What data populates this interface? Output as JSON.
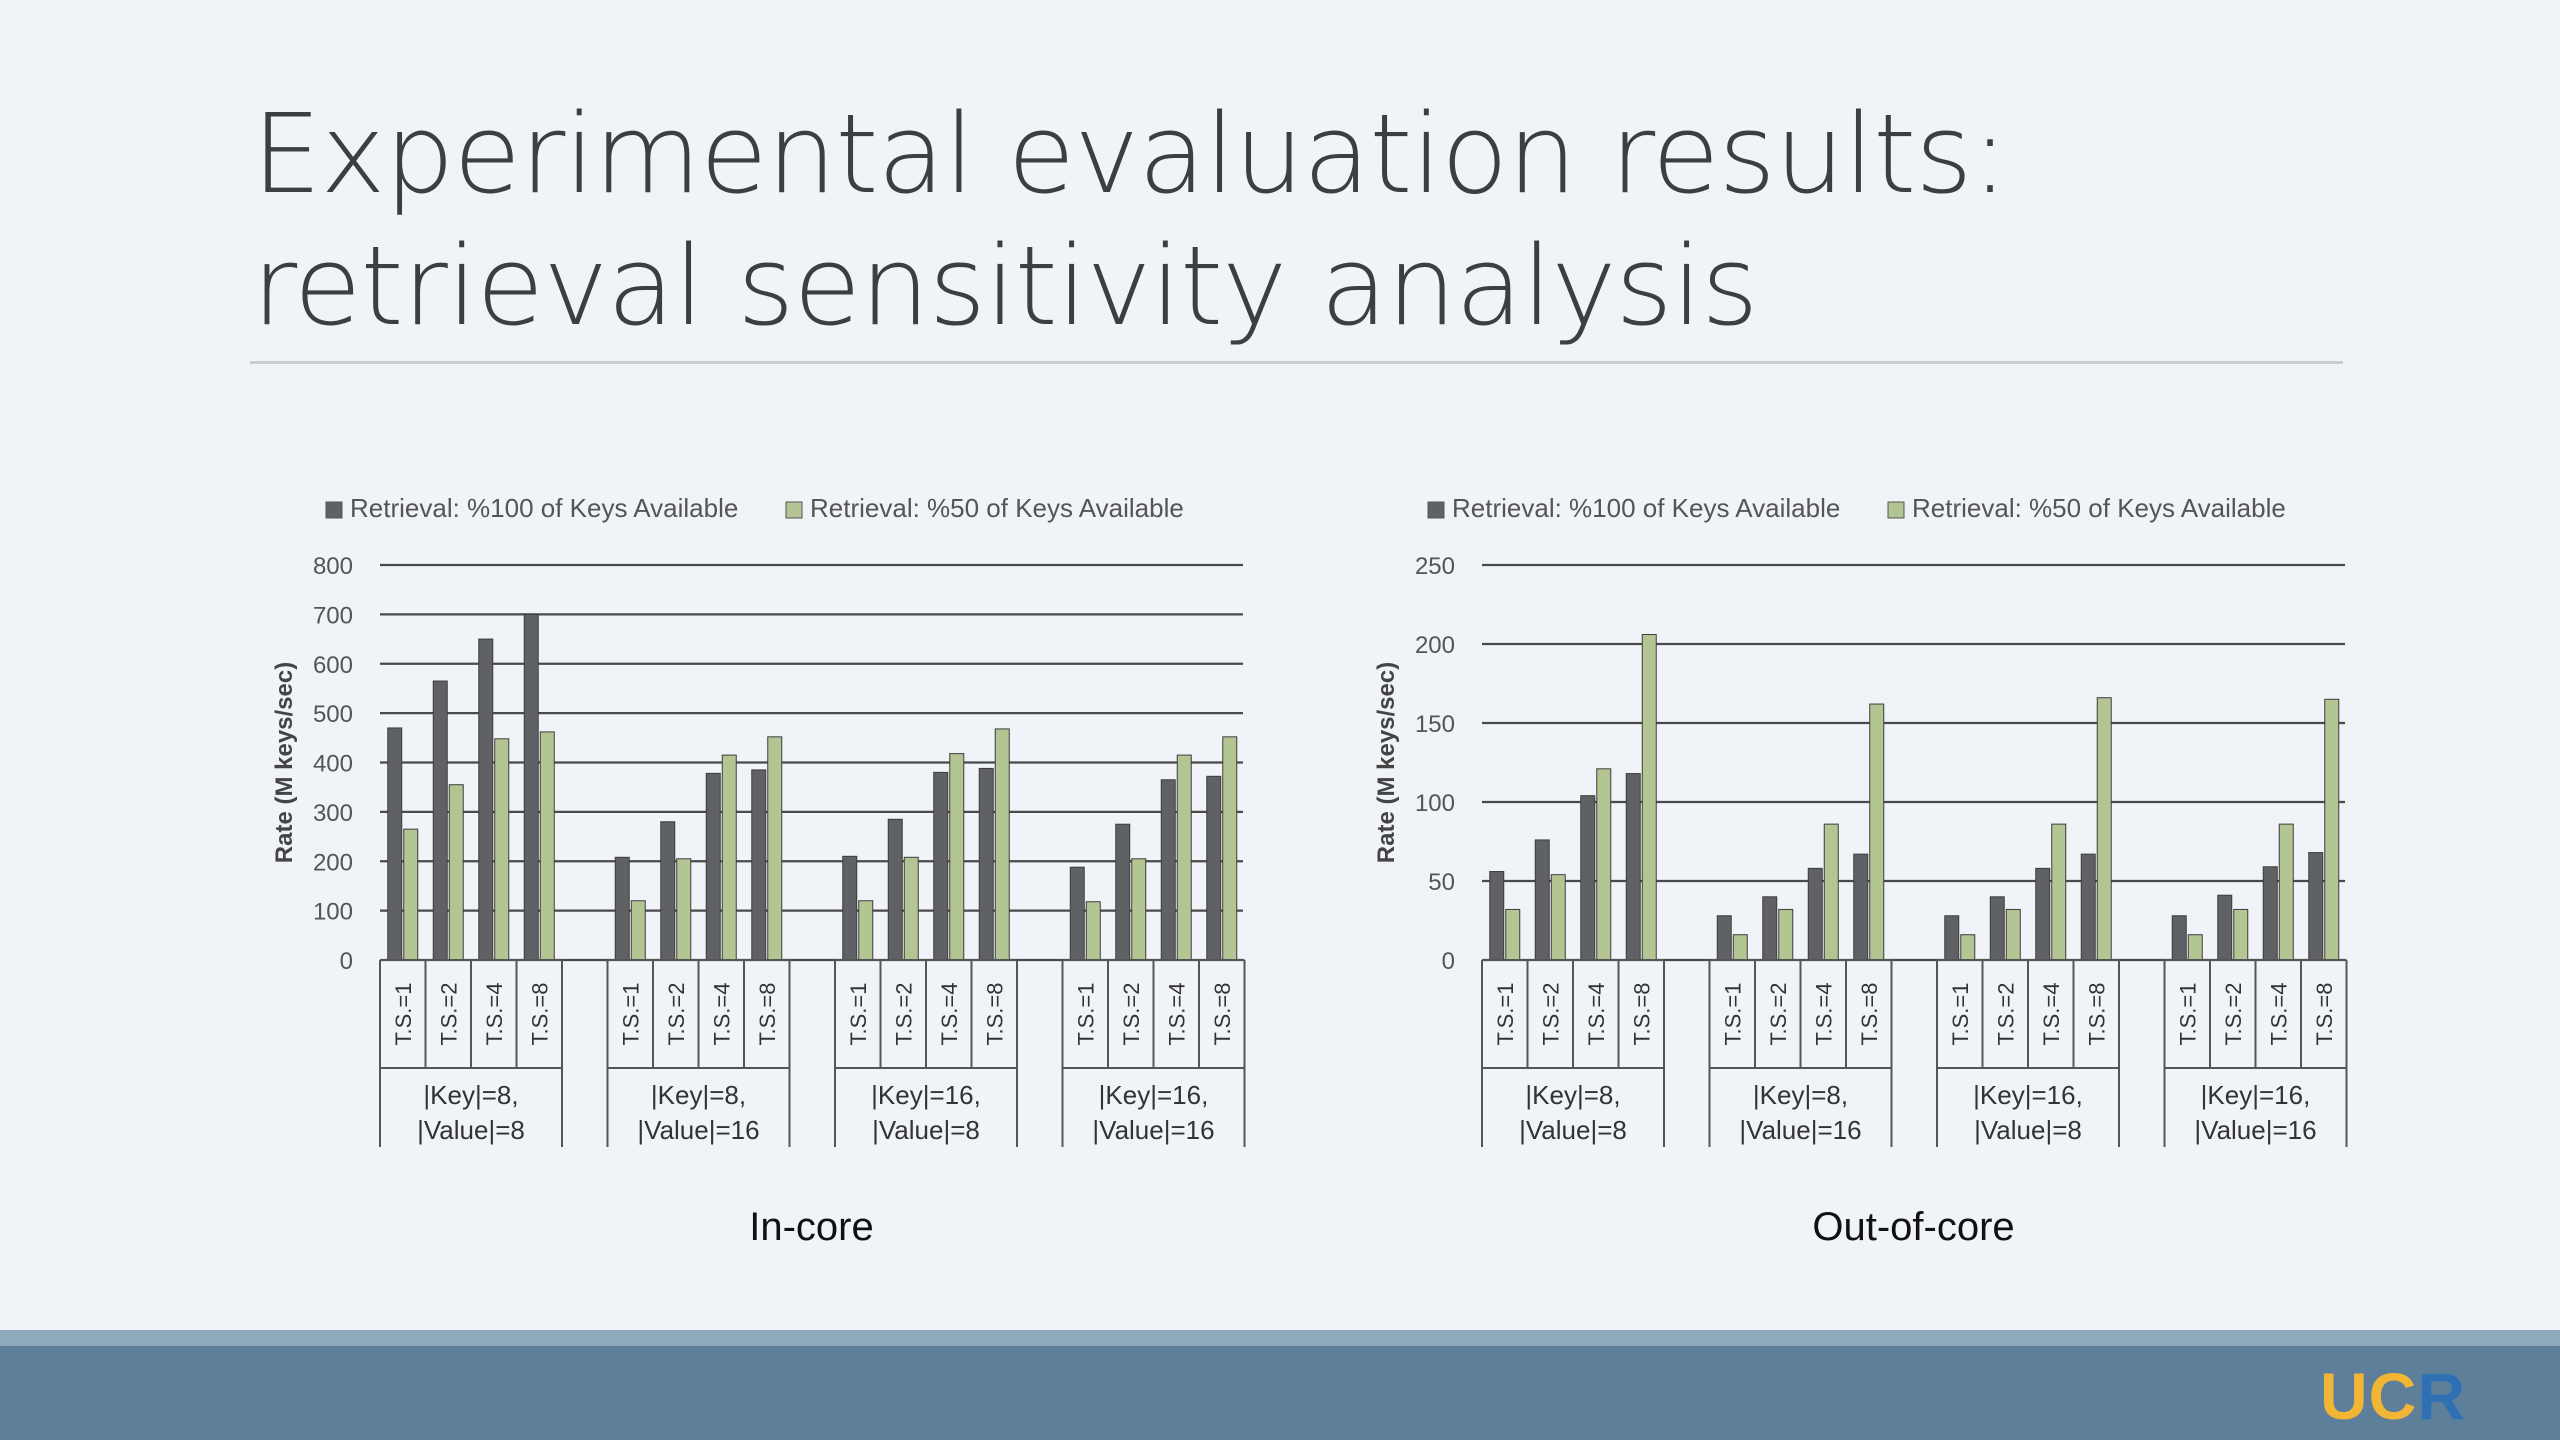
{
  "slide": {
    "title_line1": "Experimental evaluation results:",
    "title_line2": "retrieval sensitivity analysis"
  },
  "footer": {
    "logo": [
      "U",
      "C",
      "R"
    ]
  },
  "colors": {
    "series1": "#5f6164",
    "series2": "#b3c593",
    "grid": "#4a4a4a"
  },
  "chart_data": [
    {
      "id": "incore",
      "type": "bar",
      "title": "In-core",
      "ylabel": "Rate (M keys/sec)",
      "ylim": [
        0,
        800
      ],
      "yticks": [
        0,
        100,
        200,
        300,
        400,
        500,
        600,
        700,
        800
      ],
      "grid": true,
      "legend_position": "top",
      "categories": [
        "T.S.=1",
        "T.S.=2",
        "T.S.=4",
        "T.S.=8",
        "T.S.=1",
        "T.S.=2",
        "T.S.=4",
        "T.S.=8",
        "T.S.=1",
        "T.S.=2",
        "T.S.=4",
        "T.S.=8",
        "T.S.=1",
        "T.S.=2",
        "T.S.=4",
        "T.S.=8"
      ],
      "groups": [
        {
          "line1": "|Key|=8,",
          "line2": "|Value|=8"
        },
        {
          "line1": "|Key|=8,",
          "line2": "|Value|=16"
        },
        {
          "line1": "|Key|=16,",
          "line2": "|Value|=8"
        },
        {
          "line1": "|Key|=16,",
          "line2": "|Value|=16"
        }
      ],
      "series": [
        {
          "name": "Retrieval: %100 of Keys Available",
          "values": [
            470,
            565,
            650,
            700,
            208,
            280,
            378,
            385,
            210,
            285,
            380,
            388,
            188,
            275,
            365,
            372
          ]
        },
        {
          "name": "Retrieval: %50 of Keys Available",
          "values": [
            265,
            355,
            448,
            462,
            120,
            205,
            415,
            452,
            120,
            208,
            418,
            468,
            118,
            205,
            415,
            452
          ]
        }
      ]
    },
    {
      "id": "outcore",
      "type": "bar",
      "title": "Out-of-core",
      "ylabel": "Rate (M keys/sec)",
      "ylim": [
        0,
        250
      ],
      "yticks": [
        0,
        50,
        100,
        150,
        200,
        250
      ],
      "grid": true,
      "legend_position": "top",
      "categories": [
        "T.S.=1",
        "T.S.=2",
        "T.S.=4",
        "T.S.=8",
        "T.S.=1",
        "T.S.=2",
        "T.S.=4",
        "T.S.=8",
        "T.S.=1",
        "T.S.=2",
        "T.S.=4",
        "T.S.=8",
        "T.S.=1",
        "T.S.=2",
        "T.S.=4",
        "T.S.=8"
      ],
      "groups": [
        {
          "line1": "|Key|=8,",
          "line2": "|Value|=8"
        },
        {
          "line1": "|Key|=8,",
          "line2": "|Value|=16"
        },
        {
          "line1": "|Key|=16,",
          "line2": "|Value|=8"
        },
        {
          "line1": "|Key|=16,",
          "line2": "|Value|=16"
        }
      ],
      "series": [
        {
          "name": "Retrieval: %100 of Keys Available",
          "values": [
            56,
            76,
            104,
            118,
            28,
            40,
            58,
            67,
            28,
            40,
            58,
            67,
            28,
            41,
            59,
            68
          ]
        },
        {
          "name": "Retrieval: %50 of Keys Available",
          "values": [
            32,
            54,
            121,
            206,
            16,
            32,
            86,
            162,
            16,
            32,
            86,
            166,
            16,
            32,
            86,
            165
          ]
        }
      ]
    }
  ]
}
